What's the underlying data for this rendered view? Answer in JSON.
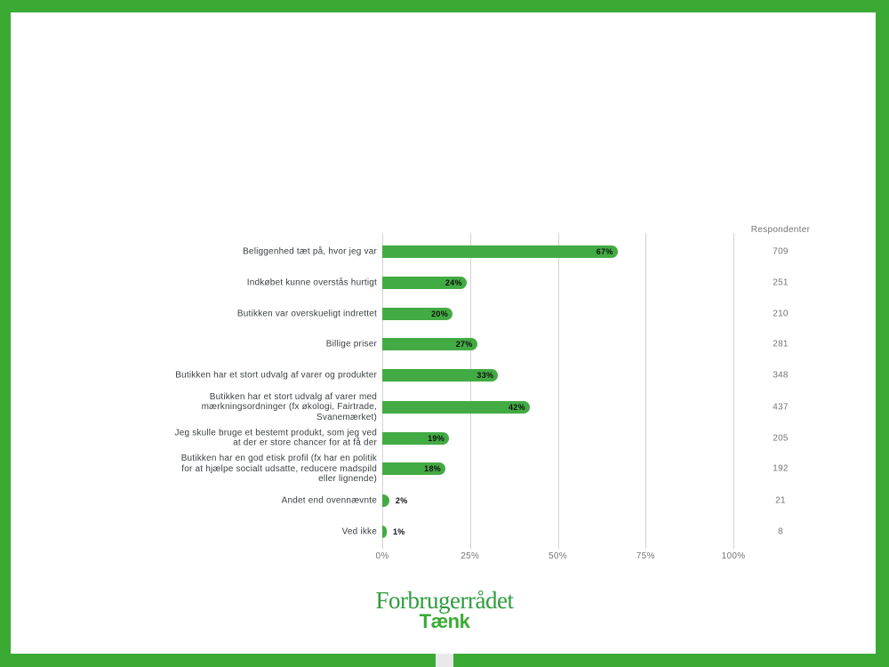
{
  "frame": {
    "border_color": "#3aaa35",
    "notch_color": "#e9e9e9",
    "page_background": "#ffffff"
  },
  "logo": {
    "line1": "Forbrugerrådet",
    "line2": "Tænk",
    "line1_color": "#2e9c3e",
    "line2_color": "#3aab35"
  },
  "chart_data": {
    "type": "bar",
    "orientation": "horizontal",
    "title": "",
    "xlabel": "",
    "ylabel": "",
    "xlim": [
      0,
      100
    ],
    "x_ticks": [
      "0%",
      "25%",
      "50%",
      "75%",
      "100%"
    ],
    "x_tick_values": [
      0,
      25,
      50,
      75,
      100
    ],
    "grid": true,
    "bar_color": "#43ab43",
    "value_label_color": "#111111",
    "respondents_header": "Respondenter",
    "categories": [
      "Beliggenhed tæt på, hvor jeg var",
      "Indkøbet kunne overstås hurtigt",
      "Butikken var overskueligt indrettet",
      "Billige priser",
      "Butikken har et stort udvalg af varer og produkter",
      "Butikken har et stort udvalg af varer med mærkningsordninger (fx økologi, Fairtrade, Svanemærket)",
      "Jeg skulle bruge et bestemt produkt, som jeg ved at der er store chancer for at få der",
      "Butikken har en god etisk profil (fx har en politik for at hjælpe socialt udsatte, reducere madspild eller lignende)",
      "Andet end ovennævnte",
      "Ved ikke"
    ],
    "values": [
      67,
      24,
      20,
      27,
      33,
      42,
      19,
      18,
      2,
      1
    ],
    "rows": [
      {
        "label_lines": [
          "Beliggenhed tæt på, hvor jeg var"
        ],
        "value": 67,
        "value_label": "67%",
        "respondents": "709"
      },
      {
        "label_lines": [
          "Indkøbet kunne overstås hurtigt"
        ],
        "value": 24,
        "value_label": "24%",
        "respondents": "251"
      },
      {
        "label_lines": [
          "Butikken var overskueligt indrettet"
        ],
        "value": 20,
        "value_label": "20%",
        "respondents": "210"
      },
      {
        "label_lines": [
          "Billige priser"
        ],
        "value": 27,
        "value_label": "27%",
        "respondents": "281"
      },
      {
        "label_lines": [
          "Butikken har et stort udvalg af varer og produkter"
        ],
        "value": 33,
        "value_label": "33%",
        "respondents": "348"
      },
      {
        "label_lines": [
          "Butikken har et stort udvalg af varer med",
          "mærkningsordninger (fx økologi, Fairtrade,",
          "Svanemærket)"
        ],
        "value": 42,
        "value_label": "42%",
        "respondents": "437"
      },
      {
        "label_lines": [
          "Jeg skulle bruge et bestemt produkt, som jeg ved",
          "at der er store chancer for at få der"
        ],
        "value": 19,
        "value_label": "19%",
        "respondents": "205"
      },
      {
        "label_lines": [
          "Butikken har en god etisk profil (fx har en politik",
          "for at hjælpe socialt udsatte, reducere madspild",
          "eller lignende)"
        ],
        "value": 18,
        "value_label": "18%",
        "respondents": "192"
      },
      {
        "label_lines": [
          "Andet end ovennævnte"
        ],
        "value": 2,
        "value_label": "2%",
        "respondents": "21"
      },
      {
        "label_lines": [
          "Ved ikke"
        ],
        "value": 1,
        "value_label": "1%",
        "respondents": "8"
      }
    ]
  }
}
